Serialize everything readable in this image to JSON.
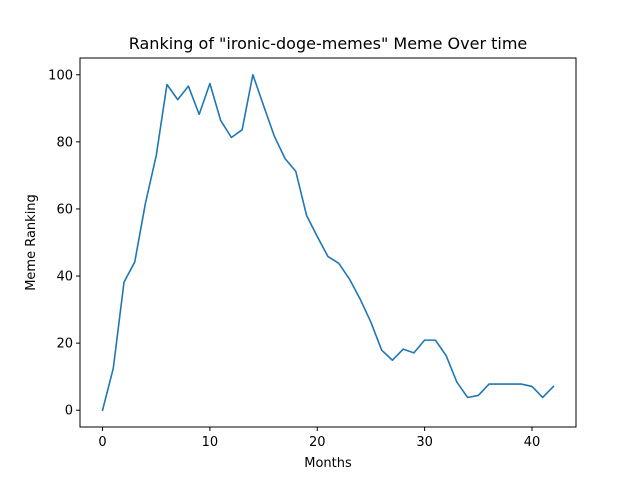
{
  "chart_data": {
    "type": "line",
    "title": "Ranking of \"ironic-doge-memes\" Meme Over time",
    "xlabel": "Months",
    "ylabel": "Meme Ranking",
    "xlim": [
      -2.1,
      44.1
    ],
    "ylim": [
      -5,
      105
    ],
    "xticks": [
      0,
      10,
      20,
      30,
      40
    ],
    "yticks": [
      0,
      20,
      40,
      60,
      80,
      100
    ],
    "grid": false,
    "line_color": "#1f77b4",
    "series": [
      {
        "x": [
          0,
          1,
          2,
          3,
          4,
          5,
          6,
          7,
          8,
          9,
          10,
          11,
          12,
          13,
          14,
          15,
          16,
          17,
          18,
          19,
          20,
          21,
          22,
          23,
          24,
          25,
          26,
          27,
          28,
          29,
          30,
          31,
          32,
          33,
          34,
          35,
          36,
          37,
          38,
          39,
          40,
          41,
          42
        ],
        "values": [
          0,
          12.5,
          38.2,
          44.2,
          61.8,
          75.9,
          97.1,
          92.6,
          96.6,
          88.2,
          97.4,
          86.4,
          81.3,
          83.6,
          100,
          90.8,
          81.7,
          75,
          71.2,
          58.1,
          51.8,
          45.8,
          43.8,
          39.1,
          33.1,
          26.2,
          17.9,
          14.9,
          18.2,
          17.1,
          20.9,
          20.9,
          16.3,
          8.4,
          3.8,
          4.4,
          7.8,
          7.8,
          7.8,
          7.8,
          7.1,
          3.8,
          7.1
        ]
      }
    ]
  }
}
